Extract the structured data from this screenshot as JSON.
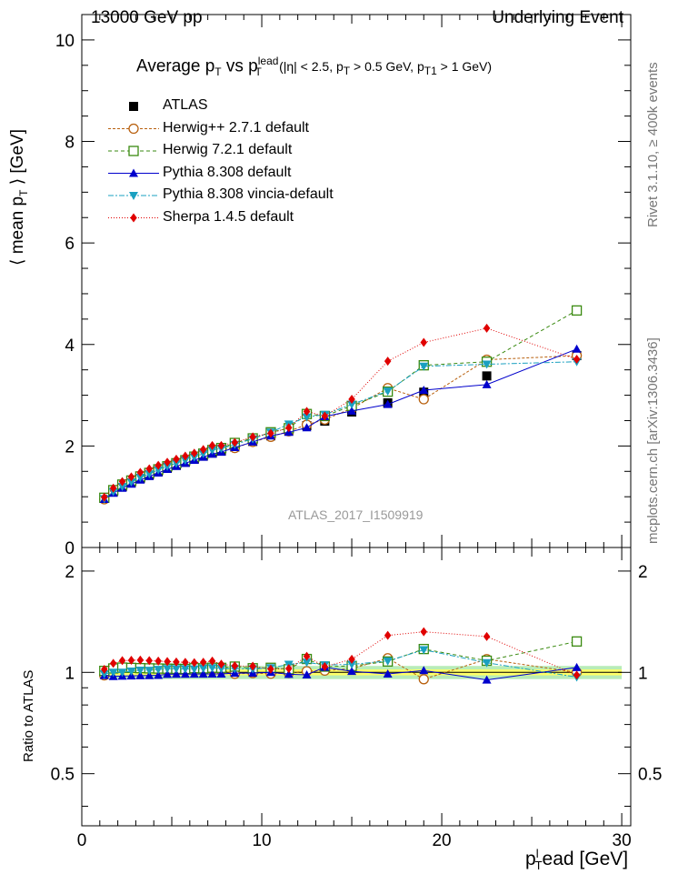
{
  "header": {
    "left": "13000 GeV pp",
    "right": "Underlying Event"
  },
  "side_labels": {
    "rivet": "Rivet 3.1.10, ≥ 400k events",
    "source": "mcplots.cern.ch [arXiv:1306.3436]"
  },
  "plot_title": {
    "a": "Average p",
    "a_sub": "T",
    "b": " vs p",
    "b_sup": "lead",
    "b_sub": "T",
    "c": "(|η| < 2.5, p",
    "c_sub": "T",
    "d": " > 0.5 GeV, p",
    "d_sub": "T1",
    "e": " > 1 GeV)"
  },
  "watermark": "ATLAS_2017_I1509919",
  "colors": {
    "atlas": "#000000",
    "herwigpp": "#b8600e",
    "herwig7": "#3a8a10",
    "pythia": "#0000cc",
    "vincia": "#1aa0c0",
    "sherpa": "#e00000",
    "band_inner": "#ffff66",
    "band_outer": "#b8ecb8"
  },
  "legend": [
    {
      "key": "atlas",
      "label": "ATLAS"
    },
    {
      "key": "herwigpp",
      "label": "Herwig++ 2.7.1 default"
    },
    {
      "key": "herwig7",
      "label": "Herwig 7.2.1 default"
    },
    {
      "key": "pythia",
      "label": "Pythia 8.308 default"
    },
    {
      "key": "vincia",
      "label": "Pythia 8.308 vincia-default"
    },
    {
      "key": "sherpa",
      "label": "Sherpa 1.4.5 default"
    }
  ],
  "chart_data": {
    "type": "scatter",
    "xlabel": "pᵀlead [GeV]",
    "xlabel_main": "p",
    "xlabel_sub": "T",
    "xlabel_sup": "l",
    "xlabel_rest": "ead [GeV]",
    "ylabel_top": "⟨ mean p",
    "ylabel_top_sub": "T",
    "ylabel_top_end": " ⟩ [GeV]",
    "ylabel_ratio": "Ratio to ATLAS",
    "xlim": [
      0,
      30.5
    ],
    "ylim_top": [
      0,
      10.5
    ],
    "ylim_ratio": [
      0.35,
      2.35
    ],
    "x_ticks": [
      "0",
      "10",
      "20",
      "30"
    ],
    "y_ticks_top": [
      "0",
      "2",
      "4",
      "6",
      "8",
      "10"
    ],
    "y_ticks_ratio": [
      "0.5",
      "1",
      "2"
    ],
    "x": [
      1.25,
      1.75,
      2.25,
      2.75,
      3.25,
      3.75,
      4.25,
      4.75,
      5.25,
      5.75,
      6.25,
      6.75,
      7.25,
      7.75,
      8.5,
      9.5,
      10.5,
      11.5,
      12.5,
      13.5,
      15.0,
      17.0,
      19.0,
      22.5,
      27.5
    ],
    "series": [
      {
        "key": "atlas",
        "name": "ATLAS",
        "values": [
          0.97,
          1.1,
          1.2,
          1.28,
          1.36,
          1.43,
          1.5,
          1.56,
          1.62,
          1.68,
          1.74,
          1.8,
          1.86,
          1.9,
          1.98,
          2.09,
          2.2,
          2.3,
          2.4,
          2.49,
          2.67,
          2.85,
          3.06,
          3.38,
          3.78
        ]
      },
      {
        "key": "herwigpp",
        "name": "Herwig++ 2.7.1 default",
        "values": [
          0.95,
          1.13,
          1.24,
          1.32,
          1.4,
          1.47,
          1.54,
          1.6,
          1.66,
          1.72,
          1.78,
          1.84,
          1.9,
          1.93,
          1.96,
          2.08,
          2.18,
          2.29,
          2.42,
          2.52,
          2.74,
          3.14,
          2.92,
          3.7,
          3.78
        ]
      },
      {
        "key": "herwig7",
        "name": "Herwig 7.2.1 default",
        "values": [
          0.98,
          1.13,
          1.24,
          1.32,
          1.4,
          1.47,
          1.54,
          1.6,
          1.66,
          1.72,
          1.79,
          1.85,
          1.92,
          1.96,
          2.06,
          2.15,
          2.27,
          2.35,
          2.63,
          2.59,
          2.79,
          3.07,
          3.59,
          3.66,
          4.67
        ]
      },
      {
        "key": "pythia",
        "name": "Pythia 8.308 default",
        "values": [
          0.95,
          1.07,
          1.17,
          1.25,
          1.33,
          1.4,
          1.47,
          1.54,
          1.6,
          1.66,
          1.72,
          1.78,
          1.84,
          1.88,
          1.97,
          2.08,
          2.2,
          2.27,
          2.36,
          2.58,
          2.69,
          2.82,
          3.1,
          3.21,
          3.91
        ]
      },
      {
        "key": "vincia",
        "name": "Pythia 8.308 vincia-default",
        "values": [
          0.96,
          1.1,
          1.2,
          1.29,
          1.38,
          1.45,
          1.53,
          1.6,
          1.66,
          1.72,
          1.78,
          1.85,
          1.92,
          1.95,
          2.03,
          2.14,
          2.27,
          2.43,
          2.57,
          2.62,
          2.82,
          3.08,
          3.57,
          3.61,
          3.66
        ]
      },
      {
        "key": "sherpa",
        "name": "Sherpa 1.4.5 default",
        "values": [
          0.99,
          1.17,
          1.3,
          1.39,
          1.48,
          1.55,
          1.62,
          1.68,
          1.74,
          1.8,
          1.86,
          1.93,
          2.01,
          2.01,
          2.07,
          2.18,
          2.25,
          2.36,
          2.68,
          2.59,
          2.92,
          3.67,
          4.04,
          4.32,
          3.71
        ]
      }
    ]
  }
}
